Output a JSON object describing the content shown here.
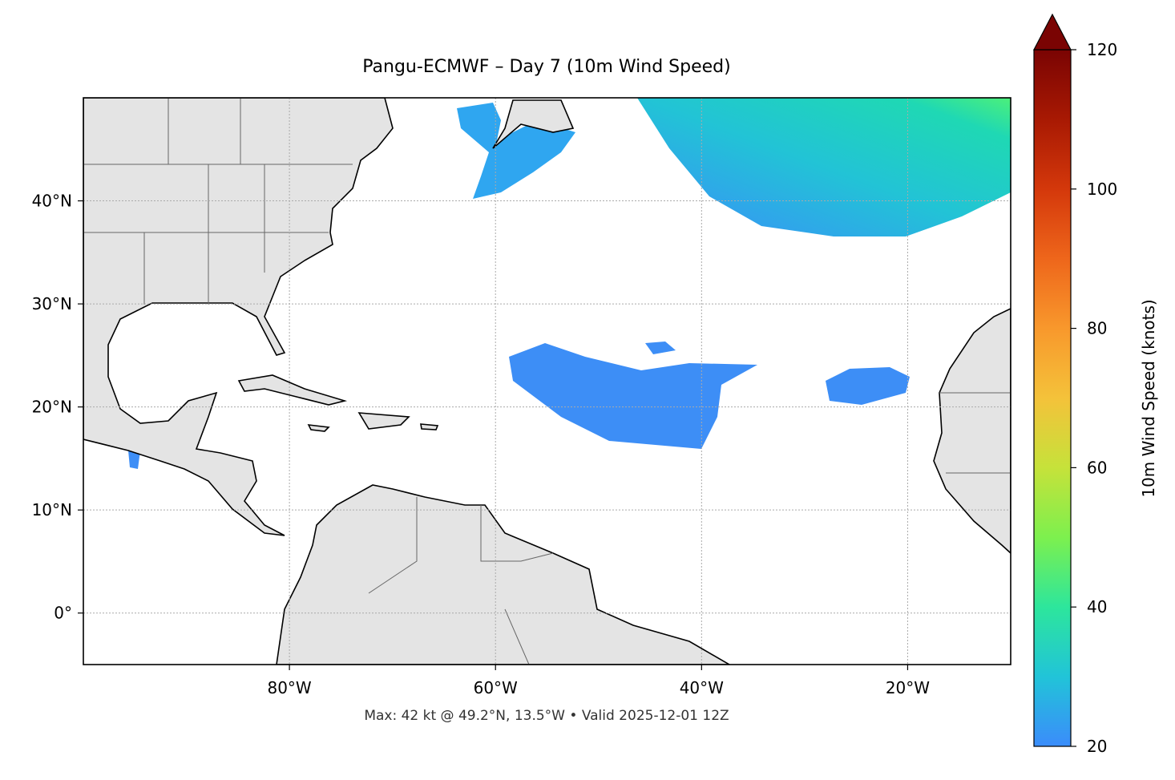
{
  "chart_data": {
    "type": "map",
    "title": "Pangu-ECMWF – Day 7 (10m Wind Speed)",
    "footer": "Max: 42 kt @ 49.2°N, 13.5°W • Valid 2025-12-01 12Z",
    "xlim": [
      -100,
      -10
    ],
    "ylim": [
      -5,
      50
    ],
    "xticks": [
      {
        "value": -80,
        "label": "80°W"
      },
      {
        "value": -60,
        "label": "60°W"
      },
      {
        "value": -40,
        "label": "40°W"
      },
      {
        "value": -20,
        "label": "20°W"
      }
    ],
    "yticks": [
      {
        "value": 0,
        "label": "0°"
      },
      {
        "value": 10,
        "label": "10°N"
      },
      {
        "value": 20,
        "label": "20°N"
      },
      {
        "value": 30,
        "label": "30°N"
      },
      {
        "value": 40,
        "label": "40°N"
      }
    ],
    "grid": true,
    "colorbar": {
      "label": "10m Wind Speed (knots)",
      "lim": [
        20,
        120
      ],
      "ticks": [
        20,
        40,
        60,
        80,
        100,
        120
      ],
      "extend": "max"
    }
  }
}
